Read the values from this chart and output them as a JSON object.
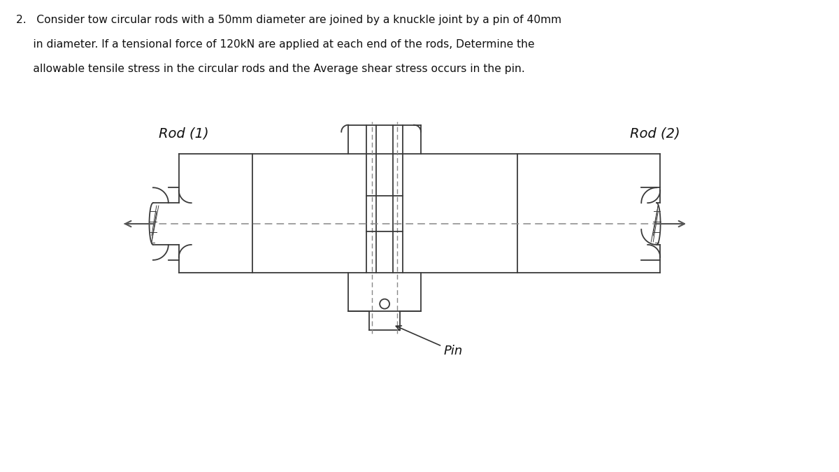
{
  "title_line1": "2.   Consider tow circular rods with a 50mm diameter are joined by a knuckle joint by a pin of 40mm",
  "title_line2": "     in diameter. If a tensional force of 120kN are applied at each end of the rods, Determine the",
  "title_line3": "     allowable tensile stress in the circular rods and the Average shear stress occurs in the pin.",
  "label_rod1": "Rod (1)",
  "label_rod2": "Rod (2)",
  "label_pin": "Pin",
  "bg_color": "#ffffff",
  "line_color": "#3a3a3a",
  "dash_color": "#888888"
}
